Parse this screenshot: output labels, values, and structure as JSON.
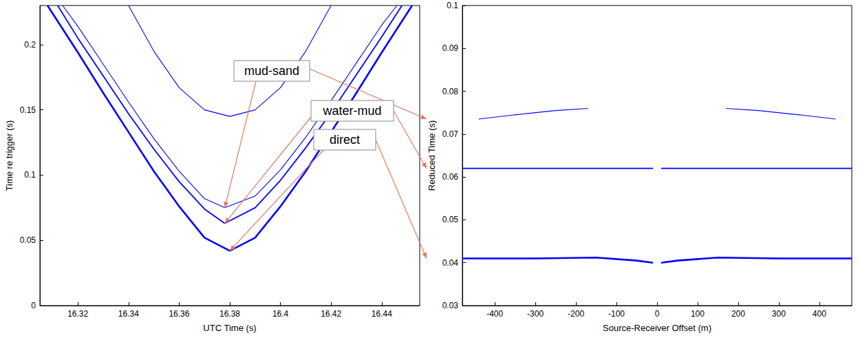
{
  "chart_data": [
    {
      "type": "line",
      "x_label": "UTC Time (s)",
      "y_label": "Time re trigger (s)",
      "xlim": [
        16.305,
        16.455
      ],
      "ylim": [
        0,
        0.23
      ],
      "xticks": [
        16.32,
        16.34,
        16.36,
        16.38,
        16.4,
        16.42,
        16.44
      ],
      "yticks": [
        0,
        0.05,
        0.1,
        0.15,
        0.2
      ],
      "annotations": [
        "mud-sand",
        "water-mud",
        "direct"
      ],
      "series": [
        {
          "name": "direct",
          "color": "#0000ff",
          "x": [
            16.308,
            16.32,
            16.33,
            16.34,
            16.35,
            16.36,
            16.37,
            16.38,
            16.39,
            16.4,
            16.41,
            16.42,
            16.43,
            16.44,
            16.452
          ],
          "values": [
            0.23,
            0.194,
            0.163,
            0.133,
            0.103,
            0.076,
            0.052,
            0.042,
            0.052,
            0.076,
            0.103,
            0.133,
            0.163,
            0.194,
            0.23
          ]
        },
        {
          "name": "water-mud",
          "color": "#0000ff",
          "x": [
            16.312,
            16.32,
            16.33,
            16.34,
            16.35,
            16.36,
            16.37,
            16.378,
            16.39,
            16.4,
            16.41,
            16.42,
            16.43,
            16.44,
            16.448
          ],
          "values": [
            0.23,
            0.205,
            0.176,
            0.147,
            0.12,
            0.095,
            0.074,
            0.063,
            0.075,
            0.096,
            0.121,
            0.148,
            0.177,
            0.206,
            0.23
          ]
        },
        {
          "name": "mud-sand",
          "color": "#0000ff",
          "x": [
            16.314,
            16.32,
            16.33,
            16.34,
            16.35,
            16.36,
            16.37,
            16.378,
            16.39,
            16.4,
            16.41,
            16.42,
            16.43,
            16.44,
            16.446
          ],
          "values": [
            0.23,
            0.214,
            0.185,
            0.156,
            0.128,
            0.103,
            0.082,
            0.075,
            0.084,
            0.104,
            0.129,
            0.157,
            0.186,
            0.215,
            0.23
          ]
        },
        {
          "color": "#0000ff",
          "x": [
            16.34,
            16.35,
            16.36,
            16.37,
            16.38,
            16.39,
            16.4,
            16.41,
            16.42
          ],
          "values": [
            0.23,
            0.195,
            0.167,
            0.15,
            0.145,
            0.15,
            0.167,
            0.195,
            0.23
          ]
        }
      ]
    },
    {
      "type": "line",
      "x_label": "Source-Receiver Offset (m)",
      "y_label": "Reduced Time (s)",
      "xlim": [
        -480,
        480
      ],
      "ylim": [
        0.03,
        0.1
      ],
      "xticks": [
        -400,
        -300,
        -200,
        -100,
        0,
        100,
        200,
        300,
        400
      ],
      "yticks": [
        0.03,
        0.04,
        0.05,
        0.06,
        0.07,
        0.08,
        0.09,
        0.1
      ],
      "series": [
        {
          "name": "direct",
          "color": "#0000ff",
          "x": [
            -480,
            -300,
            -150,
            -50,
            -10,
            0,
            10,
            50,
            150,
            300,
            480
          ],
          "values": [
            0.041,
            0.041,
            0.0412,
            0.0405,
            0.04,
            null,
            0.04,
            0.0405,
            0.0412,
            0.041,
            0.041
          ]
        },
        {
          "name": "water-mud",
          "color": "#0000ff",
          "x": [
            -480,
            -200,
            -10,
            0,
            10,
            200,
            480
          ],
          "values": [
            0.062,
            0.062,
            0.062,
            null,
            0.062,
            0.062,
            0.062
          ]
        },
        {
          "name": "mud-sand",
          "color": "#0000ff",
          "x": [
            -440,
            -350,
            -250,
            -170,
            0,
            170,
            250,
            350,
            440
          ],
          "values": [
            0.0735,
            0.0745,
            0.0755,
            0.076,
            null,
            0.076,
            0.0755,
            0.0745,
            0.0735
          ]
        }
      ]
    }
  ]
}
